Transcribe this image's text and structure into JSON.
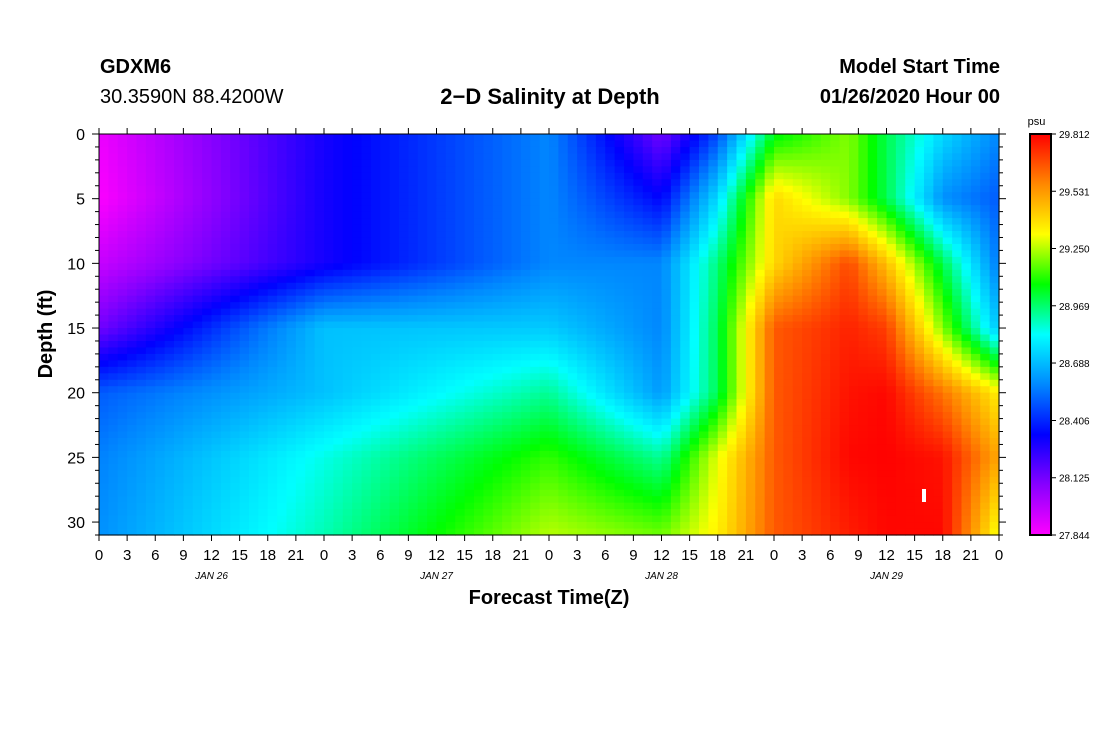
{
  "header": {
    "station": "GDXM6",
    "coords": "30.3590N 88.4200W",
    "title": "2−D Salinity at Depth",
    "start_label": "Model Start Time",
    "start_time": "01/26/2020 Hour 00"
  },
  "chart_data": {
    "type": "heatmap",
    "title": "2−D Salinity at Depth",
    "xlabel": "Forecast Time(Z)",
    "ylabel": "Depth (ft)",
    "x_tick_labels": [
      "0",
      "3",
      "6",
      "9",
      "12",
      "15",
      "18",
      "21",
      "0",
      "3",
      "6",
      "9",
      "12",
      "15",
      "18",
      "21",
      "0",
      "3",
      "6",
      "9",
      "12",
      "15",
      "18",
      "21",
      "0",
      "3",
      "6",
      "9",
      "12",
      "15",
      "18",
      "21",
      "0"
    ],
    "date_labels": [
      "JAN 26",
      "JAN 27",
      "JAN 28",
      "JAN 29"
    ],
    "y_ticks": [
      0,
      5,
      10,
      15,
      20,
      25,
      30
    ],
    "ylim": [
      0,
      31
    ],
    "y_inverted": true,
    "colorbar": {
      "unit": "psu",
      "ticks": [
        29.812,
        29.531,
        29.25,
        28.969,
        28.688,
        28.406,
        28.125,
        27.844
      ],
      "colors": [
        "#ff00ff",
        "#8800ff",
        "#0000ff",
        "#0088ff",
        "#00ffff",
        "#00ff00",
        "#ffff00",
        "#ff8800",
        "#ff0000"
      ]
    },
    "x_hours": [
      0,
      24,
      48,
      60,
      66,
      72,
      80,
      84,
      90,
      96
    ],
    "depths": [
      0,
      5,
      10,
      15,
      20,
      25,
      31
    ],
    "values": [
      [
        27.88,
        28.3,
        28.58,
        28.13,
        28.47,
        29.05,
        29.2,
        29.0,
        28.75,
        28.58
      ],
      [
        27.85,
        28.3,
        28.58,
        28.34,
        28.76,
        29.4,
        29.2,
        29.0,
        28.6,
        28.5
      ],
      [
        27.96,
        28.3,
        28.58,
        28.58,
        28.96,
        29.4,
        29.68,
        29.45,
        29.0,
        28.55
      ],
      [
        28.13,
        28.7,
        28.72,
        28.58,
        29.0,
        29.65,
        29.75,
        29.7,
        29.2,
        28.7
      ],
      [
        28.5,
        28.7,
        28.93,
        28.62,
        29.0,
        29.65,
        29.78,
        29.8,
        29.6,
        29.35
      ],
      [
        28.57,
        28.85,
        29.12,
        28.93,
        29.3,
        29.65,
        29.8,
        29.81,
        29.78,
        29.5
      ],
      [
        28.6,
        28.9,
        29.25,
        29.18,
        29.35,
        29.65,
        29.76,
        29.8,
        29.8,
        29.3
      ]
    ]
  }
}
